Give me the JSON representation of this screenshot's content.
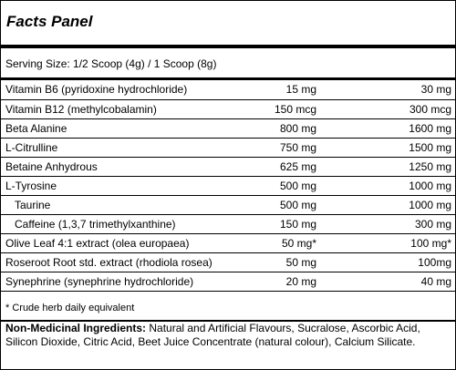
{
  "panel": {
    "title": "Facts Panel",
    "serving_size": "Serving Size: 1/2 Scoop (4g) / 1 Scoop (8g)",
    "rows": [
      {
        "name": "Vitamin B6 (pyridoxine hydrochloride)",
        "half": "15 mg",
        "full": "30 mg",
        "indent": false
      },
      {
        "name": "Vitamin B12 (methylcobalamin)",
        "half": "150 mcg",
        "full": "300 mcg",
        "indent": false
      },
      {
        "name": "Beta Alanine",
        "half": "800 mg",
        "full": "1600 mg",
        "indent": false
      },
      {
        "name": "L-Citrulline",
        "half": "750 mg",
        "full": "1500 mg",
        "indent": false
      },
      {
        "name": "Betaine Anhydrous",
        "half": "625 mg",
        "full": "1250 mg",
        "indent": false
      },
      {
        "name": "L-Tyrosine",
        "half": "500 mg",
        "full": "1000 mg",
        "indent": false
      },
      {
        "name": "Taurine",
        "half": "500 mg",
        "full": "1000 mg",
        "indent": true
      },
      {
        "name": "Caffeine (1,3,7 trimethylxanthine)",
        "half": "150 mg",
        "full": "300 mg",
        "indent": true
      },
      {
        "name": "Olive Leaf 4:1 extract (olea europaea)",
        "half": "50 mg*",
        "full": "100 mg*",
        "indent": false
      },
      {
        "name": "Roseroot Root std. extract (rhodiola rosea)",
        "half": "50 mg",
        "full": "100mg",
        "indent": false
      },
      {
        "name": "Synephrine (synephrine hydrochloride)",
        "half": "20 mg",
        "full": "40 mg",
        "indent": false
      }
    ],
    "footnote": "* Crude herb daily equivalent",
    "non_medicinal_label": "Non-Medicinal Ingredients:",
    "non_medicinal_text": " Natural and Artificial Flavours, Sucralose, Ascorbic Acid, Silicon Dioxide, Citric Acid, Beet Juice Concentrate (natural colour), Calcium Silicate."
  }
}
